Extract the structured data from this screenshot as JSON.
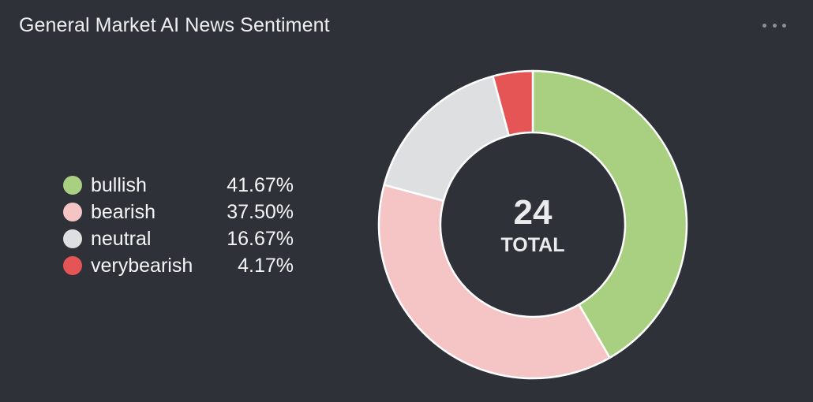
{
  "card": {
    "title": "General Market AI News Sentiment",
    "menu_icon": "more-horizontal-icon"
  },
  "chart_data": {
    "type": "pie",
    "variant": "donut",
    "total": "24",
    "total_label": "TOTAL",
    "legend_position": "left",
    "slices": [
      {
        "name": "bullish",
        "value": 41.67,
        "label": "41.67%",
        "color": "#a8d080"
      },
      {
        "name": "bearish",
        "value": 37.5,
        "label": "37.50%",
        "color": "#f5c4c4"
      },
      {
        "name": "neutral",
        "value": 16.67,
        "label": "16.67%",
        "color": "#dedfe1"
      },
      {
        "name": "verybearish",
        "value": 4.17,
        "label": "4.17%",
        "color": "#e55555"
      }
    ]
  }
}
